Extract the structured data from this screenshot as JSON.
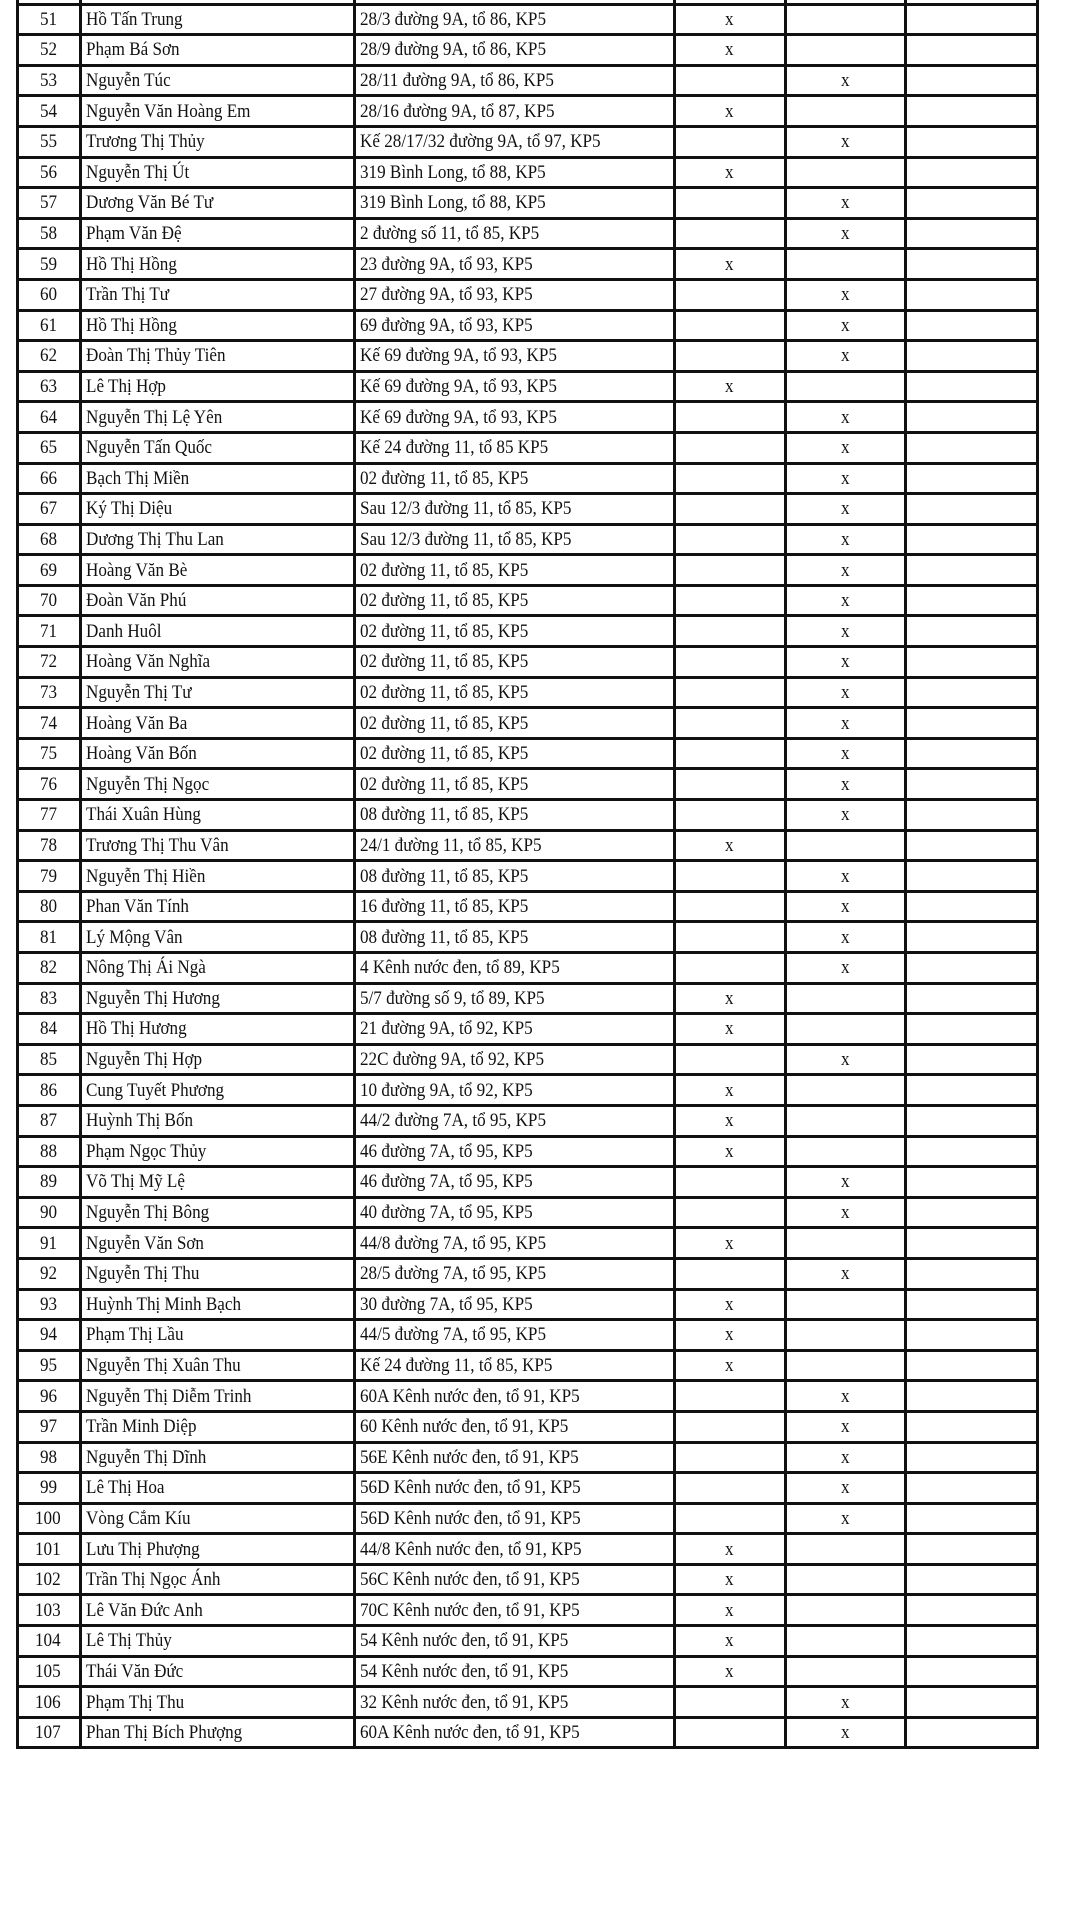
{
  "mark_symbol": "x",
  "rows": [
    {
      "stt": "51",
      "name": "Hồ Tấn Trung",
      "address": "28/3 đường 9A, tổ 86, KP5",
      "col_a": "x",
      "col_b": ""
    },
    {
      "stt": "52",
      "name": "Phạm Bá Sơn",
      "address": "28/9 đường 9A, tổ 86, KP5",
      "col_a": "x",
      "col_b": ""
    },
    {
      "stt": "53",
      "name": "Nguyễn Túc",
      "address": "28/11 đường 9A, tổ 86, KP5",
      "col_a": "",
      "col_b": "x"
    },
    {
      "stt": "54",
      "name": "Nguyễn Văn Hoàng Em",
      "address": "28/16 đường 9A, tổ 87, KP5",
      "col_a": "x",
      "col_b": ""
    },
    {
      "stt": "55",
      "name": "Trương Thị Thủy",
      "address": "Kế 28/17/32 đường 9A, tổ 97, KP5",
      "col_a": "",
      "col_b": "x"
    },
    {
      "stt": "56",
      "name": "Nguyễn Thị Út",
      "address": "319 Bình Long, tổ 88, KP5",
      "col_a": "x",
      "col_b": ""
    },
    {
      "stt": "57",
      "name": "Dương Văn Bé Tư",
      "address": "319 Bình Long, tổ 88, KP5",
      "col_a": "",
      "col_b": "x"
    },
    {
      "stt": "58",
      "name": "Phạm Văn Đệ",
      "address": "2 đường số 11, tổ 85, KP5",
      "col_a": "",
      "col_b": "x"
    },
    {
      "stt": "59",
      "name": "Hồ Thị Hồng",
      "address": "23 đường 9A, tổ 93, KP5",
      "col_a": "x",
      "col_b": ""
    },
    {
      "stt": "60",
      "name": "Trần Thị Tư",
      "address": "27 đường 9A, tổ 93, KP5",
      "col_a": "",
      "col_b": "x"
    },
    {
      "stt": "61",
      "name": "Hồ Thị Hồng",
      "address": "69 đường 9A, tổ 93, KP5",
      "col_a": "",
      "col_b": "x"
    },
    {
      "stt": "62",
      "name": "Đoàn Thị Thủy Tiên",
      "address": "Kế 69 đường 9A, tổ 93, KP5",
      "col_a": "",
      "col_b": "x"
    },
    {
      "stt": "63",
      "name": "Lê Thị Hợp",
      "address": "Kế 69 đường 9A, tổ 93, KP5",
      "col_a": "x",
      "col_b": ""
    },
    {
      "stt": "64",
      "name": "Nguyễn Thị Lệ Yên",
      "address": "Kế 69 đường 9A, tổ 93, KP5",
      "col_a": "",
      "col_b": "x"
    },
    {
      "stt": "65",
      "name": "Nguyễn Tấn Quốc",
      "address": "Kế 24 đường 11, tổ 85 KP5",
      "col_a": "",
      "col_b": "x"
    },
    {
      "stt": "66",
      "name": "Bạch Thị Miền",
      "address": "02 đường 11, tổ 85, KP5",
      "col_a": "",
      "col_b": "x"
    },
    {
      "stt": "67",
      "name": "Ký Thị Diệu",
      "address": "Sau 12/3 đường 11, tổ 85, KP5",
      "col_a": "",
      "col_b": "x"
    },
    {
      "stt": "68",
      "name": "Dương Thị Thu Lan",
      "address": "Sau 12/3 đường 11, tổ 85, KP5",
      "col_a": "",
      "col_b": "x"
    },
    {
      "stt": "69",
      "name": "Hoàng Văn Bè",
      "address": "02 đường 11, tổ 85, KP5",
      "col_a": "",
      "col_b": "x"
    },
    {
      "stt": "70",
      "name": "Đoàn Văn Phú",
      "address": "02 đường 11, tổ 85, KP5",
      "col_a": "",
      "col_b": "x"
    },
    {
      "stt": "71",
      "name": "Danh Huôl",
      "address": "02 đường 11, tổ 85, KP5",
      "col_a": "",
      "col_b": "x"
    },
    {
      "stt": "72",
      "name": "Hoàng Văn Nghĩa",
      "address": "02 đường 11, tổ 85, KP5",
      "col_a": "",
      "col_b": "x"
    },
    {
      "stt": "73",
      "name": "Nguyễn Thị Tư",
      "address": "02 đường 11, tổ 85, KP5",
      "col_a": "",
      "col_b": "x"
    },
    {
      "stt": "74",
      "name": "Hoàng Văn Ba",
      "address": "02 đường 11, tổ 85, KP5",
      "col_a": "",
      "col_b": "x"
    },
    {
      "stt": "75",
      "name": "Hoàng Văn Bốn",
      "address": "02 đường 11, tổ 85, KP5",
      "col_a": "",
      "col_b": "x"
    },
    {
      "stt": "76",
      "name": "Nguyễn Thị Ngọc",
      "address": "02 đường 11, tổ 85, KP5",
      "col_a": "",
      "col_b": "x"
    },
    {
      "stt": "77",
      "name": "Thái Xuân Hùng",
      "address": "08 đường 11, tổ 85, KP5",
      "col_a": "",
      "col_b": "x"
    },
    {
      "stt": "78",
      "name": "Trương Thị Thu Vân",
      "address": "24/1 đường 11, tổ 85, KP5",
      "col_a": "x",
      "col_b": ""
    },
    {
      "stt": "79",
      "name": "Nguyễn Thị Hiền",
      "address": "08 đường 11, tổ 85, KP5",
      "col_a": "",
      "col_b": "x"
    },
    {
      "stt": "80",
      "name": "Phan Văn Tính",
      "address": "16 đường 11, tổ 85, KP5",
      "col_a": "",
      "col_b": "x"
    },
    {
      "stt": "81",
      "name": "Lý Mộng Vân",
      "address": "08 đường 11, tổ 85, KP5",
      "col_a": "",
      "col_b": "x"
    },
    {
      "stt": "82",
      "name": "Nông Thị Ái Ngà",
      "address": "4 Kênh nước đen, tổ 89, KP5",
      "col_a": "",
      "col_b": "x"
    },
    {
      "stt": "83",
      "name": "Nguyễn Thị Hương",
      "address": "5/7 đường số 9, tổ 89, KP5",
      "col_a": "x",
      "col_b": ""
    },
    {
      "stt": "84",
      "name": "Hồ Thị Hương",
      "address": "21 đường 9A, tổ 92, KP5",
      "col_a": "x",
      "col_b": ""
    },
    {
      "stt": "85",
      "name": "Nguyễn Thị Hợp",
      "address": "22C đường 9A, tổ 92, KP5",
      "col_a": "",
      "col_b": "x"
    },
    {
      "stt": "86",
      "name": "Cung Tuyết Phương",
      "address": "10 đường 9A, tổ 92, KP5",
      "col_a": "x",
      "col_b": ""
    },
    {
      "stt": "87",
      "name": "Huỳnh Thị Bốn",
      "address": "44/2 đường 7A, tổ 95, KP5",
      "col_a": "x",
      "col_b": ""
    },
    {
      "stt": "88",
      "name": "Phạm Ngọc Thủy",
      "address": "46 đường 7A, tổ 95, KP5",
      "col_a": "x",
      "col_b": ""
    },
    {
      "stt": "89",
      "name": "Võ Thị Mỹ Lệ",
      "address": "46 đường 7A, tổ 95, KP5",
      "col_a": "",
      "col_b": "x"
    },
    {
      "stt": "90",
      "name": "Nguyễn Thị Bông",
      "address": "40 đường 7A, tổ 95, KP5",
      "col_a": "",
      "col_b": "x"
    },
    {
      "stt": "91",
      "name": "Nguyễn Văn Sơn",
      "address": "44/8 đường 7A, tổ 95, KP5",
      "col_a": "x",
      "col_b": ""
    },
    {
      "stt": "92",
      "name": "Nguyễn Thị Thu",
      "address": "28/5 đường 7A, tổ 95, KP5",
      "col_a": "",
      "col_b": "x"
    },
    {
      "stt": "93",
      "name": "Huỳnh Thị Minh Bạch",
      "address": "30 đường 7A, tổ 95, KP5",
      "col_a": "x",
      "col_b": ""
    },
    {
      "stt": "94",
      "name": "Phạm Thị Lầu",
      "address": "44/5 đường 7A, tổ 95, KP5",
      "col_a": "x",
      "col_b": ""
    },
    {
      "stt": "95",
      "name": "Nguyễn Thị Xuân Thu",
      "address": "Kế 24 đường 11, tổ 85, KP5",
      "col_a": "x",
      "col_b": ""
    },
    {
      "stt": "96",
      "name": "Nguyễn Thị Diễm Trinh",
      "address": "60A Kênh nước đen, tổ 91, KP5",
      "col_a": "",
      "col_b": "x"
    },
    {
      "stt": "97",
      "name": "Trần Minh Diệp",
      "address": "60 Kênh nước đen, tổ 91, KP5",
      "col_a": "",
      "col_b": "x"
    },
    {
      "stt": "98",
      "name": "Nguyễn Thị Dĩnh",
      "address": "56E Kênh nước đen, tổ 91, KP5",
      "col_a": "",
      "col_b": "x"
    },
    {
      "stt": "99",
      "name": "Lê Thị Hoa",
      "address": "56D Kênh nước đen, tổ 91, KP5",
      "col_a": "",
      "col_b": "x"
    },
    {
      "stt": "100",
      "name": "Vòng Cắm Kíu",
      "address": "56D Kênh nước đen, tổ 91, KP5",
      "col_a": "",
      "col_b": "x"
    },
    {
      "stt": "101",
      "name": "Lưu Thị Phượng",
      "address": "44/8 Kênh nước đen, tổ 91, KP5",
      "col_a": "x",
      "col_b": ""
    },
    {
      "stt": "102",
      "name": "Trần Thị Ngọc Ánh",
      "address": "56C Kênh nước đen, tổ 91, KP5",
      "col_a": "x",
      "col_b": ""
    },
    {
      "stt": "103",
      "name": "Lê Văn Đức Anh",
      "address": "70C Kênh nước đen, tổ 91, KP5",
      "col_a": "x",
      "col_b": ""
    },
    {
      "stt": "104",
      "name": "Lê Thị Thủy",
      "address": "54 Kênh nước đen, tổ 91, KP5",
      "col_a": "x",
      "col_b": ""
    },
    {
      "stt": "105",
      "name": "Thái Văn Đức",
      "address": "54 Kênh nước đen, tổ 91, KP5",
      "col_a": "x",
      "col_b": ""
    },
    {
      "stt": "106",
      "name": "Phạm Thị Thu",
      "address": "32 Kênh nước đen, tổ 91, KP5",
      "col_a": "",
      "col_b": "x"
    },
    {
      "stt": "107",
      "name": "Phan Thị Bích Phượng",
      "address": "60A Kênh nước đen, tổ 91, KP5",
      "col_a": "",
      "col_b": "x"
    }
  ]
}
